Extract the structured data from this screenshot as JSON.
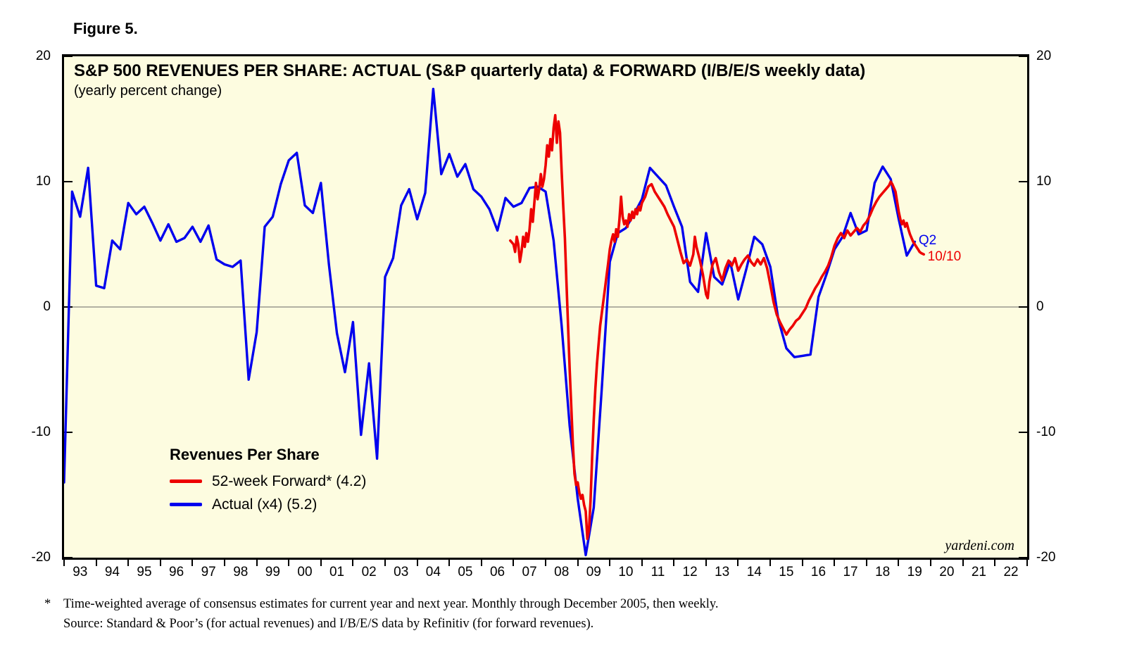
{
  "figure_label": "Figure 5.",
  "footnote": {
    "marker": "*",
    "line1": "Time-weighted average of consensus estimates for current year and next year. Monthly through December 2005, then weekly.",
    "line2": "Source: Standard & Poor’s (for actual revenues) and I/B/E/S data by Refinitiv (for forward revenues)."
  },
  "colors": {
    "page_background": "#FFFFFF",
    "plot_background": "#FDFCE0",
    "border": "#000000",
    "forward_line": "#ED0000",
    "actual_line": "#0000EE",
    "zero_line": "#666666"
  },
  "chart_data": {
    "type": "line",
    "title": "S&P 500 REVENUES PER SHARE: ACTUAL (S&P quarterly data) & FORWARD (I/B/E/S weekly data)",
    "subtitle": "(yearly percent change)",
    "xlabel": "",
    "ylabel": "",
    "xlim": [
      1993,
      2023
    ],
    "ylim": [
      -20,
      20
    ],
    "yticks": [
      20,
      10,
      0,
      -10,
      -20
    ],
    "x_tick_labels": [
      "93",
      "94",
      "95",
      "96",
      "97",
      "98",
      "99",
      "00",
      "01",
      "02",
      "03",
      "04",
      "05",
      "06",
      "07",
      "08",
      "09",
      "10",
      "11",
      "12",
      "13",
      "14",
      "15",
      "16",
      "17",
      "18",
      "19",
      "20",
      "21",
      "22"
    ],
    "grid": "horizontal zero line only",
    "legend_position": "inside lower-left",
    "watermark": "yardeni.com",
    "legend": {
      "heading": "Revenues Per Share",
      "entries": [
        {
          "label": "52-week Forward* (4.2)",
          "color": "#ED0000"
        },
        {
          "label": "Actual (x4) (5.2)",
          "color": "#0000EE"
        }
      ]
    },
    "annotations": [
      {
        "text": "Q2",
        "color": "#0000EE",
        "x": 2019.62,
        "y": 5.3
      },
      {
        "text": "10/10",
        "color": "#ED0000",
        "x": 2019.9,
        "y": 4.0
      }
    ],
    "series": [
      {
        "name": "Actual (x4) (5.2)",
        "color": "#0000EE",
        "width": 3.4,
        "points": [
          [
            1993.0,
            -14.0
          ],
          [
            1993.25,
            9.2
          ],
          [
            1993.5,
            7.2
          ],
          [
            1993.75,
            11.1
          ],
          [
            1994.0,
            1.7
          ],
          [
            1994.25,
            1.5
          ],
          [
            1994.5,
            5.3
          ],
          [
            1994.75,
            4.6
          ],
          [
            1995.0,
            8.3
          ],
          [
            1995.25,
            7.4
          ],
          [
            1995.5,
            8.0
          ],
          [
            1995.75,
            6.7
          ],
          [
            1996.0,
            5.3
          ],
          [
            1996.25,
            6.6
          ],
          [
            1996.5,
            5.2
          ],
          [
            1996.75,
            5.5
          ],
          [
            1997.0,
            6.4
          ],
          [
            1997.25,
            5.2
          ],
          [
            1997.5,
            6.5
          ],
          [
            1997.75,
            3.8
          ],
          [
            1998.0,
            3.4
          ],
          [
            1998.25,
            3.2
          ],
          [
            1998.5,
            3.7
          ],
          [
            1998.75,
            -5.8
          ],
          [
            1999.0,
            -2.0
          ],
          [
            1999.25,
            6.4
          ],
          [
            1999.5,
            7.2
          ],
          [
            1999.75,
            9.8
          ],
          [
            2000.0,
            11.7
          ],
          [
            2000.25,
            12.3
          ],
          [
            2000.5,
            8.1
          ],
          [
            2000.75,
            7.5
          ],
          [
            2001.0,
            9.9
          ],
          [
            2001.25,
            3.4
          ],
          [
            2001.5,
            -2.1
          ],
          [
            2001.75,
            -5.2
          ],
          [
            2002.0,
            -1.2
          ],
          [
            2002.25,
            -10.2
          ],
          [
            2002.5,
            -4.5
          ],
          [
            2002.75,
            -12.1
          ],
          [
            2003.0,
            2.4
          ],
          [
            2003.25,
            3.9
          ],
          [
            2003.5,
            8.1
          ],
          [
            2003.75,
            9.4
          ],
          [
            2004.0,
            7.0
          ],
          [
            2004.25,
            9.1
          ],
          [
            2004.5,
            17.4
          ],
          [
            2004.75,
            10.6
          ],
          [
            2005.0,
            12.2
          ],
          [
            2005.25,
            10.4
          ],
          [
            2005.5,
            11.4
          ],
          [
            2005.75,
            9.4
          ],
          [
            2006.0,
            8.8
          ],
          [
            2006.25,
            7.8
          ],
          [
            2006.5,
            6.1
          ],
          [
            2006.75,
            8.7
          ],
          [
            2007.0,
            8.0
          ],
          [
            2007.25,
            8.3
          ],
          [
            2007.5,
            9.5
          ],
          [
            2007.75,
            9.6
          ],
          [
            2008.0,
            9.2
          ],
          [
            2008.25,
            5.3
          ],
          [
            2008.5,
            -1.5
          ],
          [
            2008.75,
            -9.5
          ],
          [
            2009.0,
            -15.3
          ],
          [
            2009.25,
            -19.8
          ],
          [
            2009.5,
            -16.0
          ],
          [
            2009.75,
            -6.5
          ],
          [
            2010.0,
            3.6
          ],
          [
            2010.25,
            5.9
          ],
          [
            2010.5,
            6.3
          ],
          [
            2010.75,
            7.4
          ],
          [
            2011.0,
            8.6
          ],
          [
            2011.25,
            11.1
          ],
          [
            2011.5,
            10.4
          ],
          [
            2011.75,
            9.7
          ],
          [
            2012.0,
            8.0
          ],
          [
            2012.25,
            6.4
          ],
          [
            2012.5,
            2.0
          ],
          [
            2012.75,
            1.2
          ],
          [
            2013.0,
            5.9
          ],
          [
            2013.25,
            2.4
          ],
          [
            2013.5,
            1.8
          ],
          [
            2013.75,
            3.6
          ],
          [
            2014.0,
            0.6
          ],
          [
            2014.25,
            3.0
          ],
          [
            2014.5,
            5.6
          ],
          [
            2014.75,
            5.0
          ],
          [
            2015.0,
            3.2
          ],
          [
            2015.25,
            -1.0
          ],
          [
            2015.5,
            -3.3
          ],
          [
            2015.75,
            -4.0
          ],
          [
            2016.0,
            -3.9
          ],
          [
            2016.25,
            -3.8
          ],
          [
            2016.5,
            0.8
          ],
          [
            2016.75,
            2.6
          ],
          [
            2017.0,
            4.6
          ],
          [
            2017.25,
            5.6
          ],
          [
            2017.5,
            7.5
          ],
          [
            2017.75,
            5.8
          ],
          [
            2018.0,
            6.1
          ],
          [
            2018.25,
            9.9
          ],
          [
            2018.5,
            11.2
          ],
          [
            2018.75,
            10.2
          ],
          [
            2019.0,
            7.0
          ],
          [
            2019.25,
            4.1
          ],
          [
            2019.5,
            5.2
          ]
        ]
      },
      {
        "name": "52-week Forward* (4.2)",
        "color": "#ED0000",
        "width": 3.6,
        "points": [
          [
            2006.9,
            5.3
          ],
          [
            2007.0,
            5.0
          ],
          [
            2007.05,
            4.4
          ],
          [
            2007.1,
            5.6
          ],
          [
            2007.15,
            5.0
          ],
          [
            2007.2,
            3.6
          ],
          [
            2007.25,
            4.4
          ],
          [
            2007.3,
            5.6
          ],
          [
            2007.35,
            4.8
          ],
          [
            2007.4,
            5.9
          ],
          [
            2007.45,
            5.2
          ],
          [
            2007.5,
            6.2
          ],
          [
            2007.55,
            7.8
          ],
          [
            2007.6,
            6.8
          ],
          [
            2007.65,
            8.3
          ],
          [
            2007.7,
            9.9
          ],
          [
            2007.75,
            8.6
          ],
          [
            2007.8,
            9.4
          ],
          [
            2007.85,
            10.6
          ],
          [
            2007.9,
            9.6
          ],
          [
            2007.95,
            10.2
          ],
          [
            2008.0,
            11.3
          ],
          [
            2008.05,
            12.9
          ],
          [
            2008.1,
            12.0
          ],
          [
            2008.15,
            13.4
          ],
          [
            2008.2,
            12.5
          ],
          [
            2008.25,
            14.3
          ],
          [
            2008.3,
            15.3
          ],
          [
            2008.35,
            13.1
          ],
          [
            2008.4,
            14.8
          ],
          [
            2008.45,
            13.9
          ],
          [
            2008.5,
            10.8
          ],
          [
            2008.55,
            8.0
          ],
          [
            2008.6,
            5.5
          ],
          [
            2008.65,
            2.0
          ],
          [
            2008.7,
            -1.5
          ],
          [
            2008.75,
            -5.0
          ],
          [
            2008.8,
            -8.0
          ],
          [
            2008.85,
            -11.0
          ],
          [
            2008.9,
            -13.3
          ],
          [
            2008.95,
            -14.2
          ],
          [
            2009.0,
            -14.0
          ],
          [
            2009.05,
            -14.8
          ],
          [
            2009.1,
            -15.3
          ],
          [
            2009.15,
            -15.0
          ],
          [
            2009.2,
            -15.8
          ],
          [
            2009.25,
            -16.3
          ],
          [
            2009.3,
            -18.5
          ],
          [
            2009.35,
            -17.8
          ],
          [
            2009.4,
            -15.5
          ],
          [
            2009.45,
            -12.0
          ],
          [
            2009.5,
            -9.0
          ],
          [
            2009.55,
            -6.5
          ],
          [
            2009.6,
            -4.5
          ],
          [
            2009.65,
            -3.0
          ],
          [
            2009.7,
            -1.5
          ],
          [
            2009.75,
            -0.5
          ],
          [
            2009.8,
            0.5
          ],
          [
            2009.85,
            1.5
          ],
          [
            2009.9,
            2.5
          ],
          [
            2009.95,
            3.5
          ],
          [
            2010.0,
            4.6
          ],
          [
            2010.05,
            5.3
          ],
          [
            2010.1,
            5.8
          ],
          [
            2010.15,
            5.2
          ],
          [
            2010.2,
            6.2
          ],
          [
            2010.25,
            5.6
          ],
          [
            2010.3,
            7.0
          ],
          [
            2010.35,
            8.8
          ],
          [
            2010.4,
            7.2
          ],
          [
            2010.45,
            6.6
          ],
          [
            2010.5,
            6.9
          ],
          [
            2010.55,
            6.4
          ],
          [
            2010.6,
            7.4
          ],
          [
            2010.65,
            6.9
          ],
          [
            2010.7,
            7.6
          ],
          [
            2010.75,
            7.1
          ],
          [
            2010.8,
            7.8
          ],
          [
            2010.85,
            7.4
          ],
          [
            2010.9,
            8.0
          ],
          [
            2010.95,
            7.7
          ],
          [
            2011.0,
            8.3
          ],
          [
            2011.1,
            8.8
          ],
          [
            2011.2,
            9.6
          ],
          [
            2011.3,
            9.8
          ],
          [
            2011.4,
            9.2
          ],
          [
            2011.5,
            8.8
          ],
          [
            2011.6,
            8.4
          ],
          [
            2011.7,
            8.0
          ],
          [
            2011.8,
            7.4
          ],
          [
            2011.9,
            6.9
          ],
          [
            2012.0,
            6.4
          ],
          [
            2012.1,
            5.4
          ],
          [
            2012.2,
            4.4
          ],
          [
            2012.3,
            3.5
          ],
          [
            2012.4,
            3.8
          ],
          [
            2012.5,
            3.3
          ],
          [
            2012.6,
            4.2
          ],
          [
            2012.65,
            5.6
          ],
          [
            2012.7,
            4.8
          ],
          [
            2012.8,
            3.8
          ],
          [
            2012.9,
            2.6
          ],
          [
            2013.0,
            1.0
          ],
          [
            2013.05,
            0.7
          ],
          [
            2013.1,
            2.0
          ],
          [
            2013.2,
            3.4
          ],
          [
            2013.3,
            3.9
          ],
          [
            2013.4,
            2.8
          ],
          [
            2013.5,
            2.1
          ],
          [
            2013.6,
            3.1
          ],
          [
            2013.7,
            3.7
          ],
          [
            2013.8,
            3.3
          ],
          [
            2013.9,
            3.9
          ],
          [
            2014.0,
            2.9
          ],
          [
            2014.1,
            3.4
          ],
          [
            2014.2,
            3.8
          ],
          [
            2014.3,
            4.1
          ],
          [
            2014.4,
            3.6
          ],
          [
            2014.5,
            3.3
          ],
          [
            2014.6,
            3.8
          ],
          [
            2014.7,
            3.4
          ],
          [
            2014.8,
            3.9
          ],
          [
            2014.9,
            3.1
          ],
          [
            2015.0,
            1.8
          ],
          [
            2015.1,
            0.4
          ],
          [
            2015.2,
            -0.6
          ],
          [
            2015.3,
            -1.2
          ],
          [
            2015.4,
            -1.7
          ],
          [
            2015.5,
            -2.2
          ],
          [
            2015.6,
            -1.8
          ],
          [
            2015.7,
            -1.5
          ],
          [
            2015.8,
            -1.1
          ],
          [
            2015.9,
            -0.9
          ],
          [
            2016.0,
            -0.5
          ],
          [
            2016.1,
            -0.1
          ],
          [
            2016.2,
            0.5
          ],
          [
            2016.3,
            1.0
          ],
          [
            2016.4,
            1.5
          ],
          [
            2016.5,
            1.9
          ],
          [
            2016.6,
            2.4
          ],
          [
            2016.7,
            2.8
          ],
          [
            2016.8,
            3.3
          ],
          [
            2016.9,
            4.0
          ],
          [
            2017.0,
            4.9
          ],
          [
            2017.1,
            5.5
          ],
          [
            2017.2,
            5.9
          ],
          [
            2017.3,
            5.5
          ],
          [
            2017.4,
            6.1
          ],
          [
            2017.5,
            5.7
          ],
          [
            2017.6,
            6.0
          ],
          [
            2017.7,
            6.3
          ],
          [
            2017.8,
            6.0
          ],
          [
            2017.9,
            6.5
          ],
          [
            2018.0,
            6.8
          ],
          [
            2018.1,
            7.3
          ],
          [
            2018.2,
            7.9
          ],
          [
            2018.3,
            8.4
          ],
          [
            2018.4,
            8.8
          ],
          [
            2018.5,
            9.1
          ],
          [
            2018.6,
            9.4
          ],
          [
            2018.7,
            9.7
          ],
          [
            2018.75,
            10.0
          ],
          [
            2018.8,
            9.8
          ],
          [
            2018.9,
            9.2
          ],
          [
            2019.0,
            7.6
          ],
          [
            2019.05,
            7.0
          ],
          [
            2019.1,
            6.6
          ],
          [
            2019.15,
            6.9
          ],
          [
            2019.2,
            6.4
          ],
          [
            2019.25,
            6.7
          ],
          [
            2019.3,
            6.2
          ],
          [
            2019.35,
            5.8
          ],
          [
            2019.4,
            5.5
          ],
          [
            2019.45,
            5.2
          ],
          [
            2019.5,
            5.0
          ],
          [
            2019.55,
            4.8
          ],
          [
            2019.6,
            4.6
          ],
          [
            2019.65,
            4.4
          ],
          [
            2019.7,
            4.3
          ],
          [
            2019.78,
            4.2
          ]
        ]
      }
    ]
  }
}
